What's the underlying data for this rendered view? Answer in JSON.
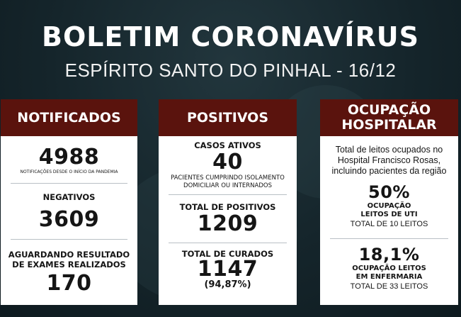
{
  "header": {
    "title": "BOLETIM CORONAVÍRUS",
    "subtitle": "ESPÍRITO SANTO DO PINHAL - 16/12"
  },
  "colors": {
    "header_band": "#5a130d",
    "background": "#15252b",
    "card": "#ffffff"
  },
  "notificados": {
    "heading": "NOTIFICADOS",
    "total": "4988",
    "total_note": "NOTIFICAÇÕES DESDE O INÍCIO DA PANDEMIA",
    "negativos_label": "NEGATIVOS",
    "negativos": "3609",
    "aguardando_label_1": "AGUARDANDO RESULTADO",
    "aguardando_label_2": "DE EXAMES REALIZADOS",
    "aguardando": "170"
  },
  "positivos": {
    "heading": "POSITIVOS",
    "ativos_label": "CASOS ATIVOS",
    "ativos": "40",
    "ativos_note_1": "PACIENTES CUMPRINDO ISOLAMENTO",
    "ativos_note_2": "DOMICILIAR OU INTERNADOS",
    "total_label": "TOTAL DE POSITIVOS",
    "total": "1209",
    "curados_label": "TOTAL DE CURADOS",
    "curados": "1147",
    "curados_pct": "(94,87%)"
  },
  "ocupacao": {
    "heading_1": "OCUPAÇÃO",
    "heading_2": "HOSPITALAR",
    "desc_1": "Total de leitos ocupados no",
    "desc_2": "Hospital Francisco Rosas,",
    "desc_3": "incluindo pacientes da região",
    "uti_pct": "50%",
    "uti_label_1": "OCUPAÇÃO",
    "uti_label_2": "LEITOS DE UTI",
    "uti_total": "TOTAL DE 10 LEITOS",
    "enf_pct": "18,1%",
    "enf_label_1": "OCUPAÇÃO LEITOS",
    "enf_label_2": "EM ENFERMARIA",
    "enf_total": "TOTAL DE 33 LEITOS"
  }
}
